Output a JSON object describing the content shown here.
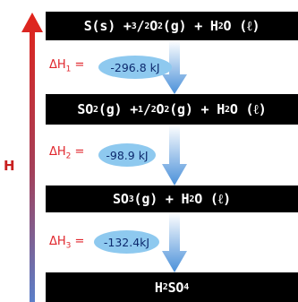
{
  "axis": {
    "label": "H"
  },
  "species": {
    "s": "S(s)",
    "o2": "O",
    "h2o": "H",
    "so2": "SO",
    "so3": "SO",
    "h2so4": "H"
  },
  "reactions": [
    {
      "id": "r1",
      "reactants": "S(s) + 3/2 O2(g) + H2O (ℓ)",
      "delta_h_label": "ΔH1",
      "delta_h_value": "-296.8 kJ"
    },
    {
      "id": "r2",
      "reactants": "SO2(g) + 1/2 O2(g) + H2O (ℓ)",
      "delta_h_label": "ΔH2",
      "delta_h_value": "-98.9 kJ"
    },
    {
      "id": "r3",
      "reactants": "SO3(g) + H2O (ℓ)",
      "delta_h_label": "ΔH3",
      "delta_h_value": "-132.4kJ"
    },
    {
      "id": "r4",
      "reactants": "H2SO4"
    }
  ],
  "text": {
    "box1": {
      "a": "S(s) + ",
      "num": "3",
      "slash": "/",
      "den": "2",
      "b": " O",
      "c": "(g) + H",
      "d": "O (ℓ)"
    },
    "box2": {
      "a": "SO",
      "b": "(g) + ",
      "num": "1",
      "slash": "/",
      "den": "2",
      "c": " O",
      "d": "(g) + H",
      "e": "O (ℓ)"
    },
    "box3": {
      "a": "SO",
      "b": "(g) + H",
      "c": "O (ℓ)"
    },
    "box4": {
      "a": "H",
      "b": "SO"
    },
    "sub2": "2",
    "sub3": "3",
    "sub4": "4",
    "dh": [
      {
        "sym": "ΔH",
        "sub": "1",
        "eq": " ="
      },
      {
        "sym": "ΔH",
        "sub": "2",
        "eq": " ="
      },
      {
        "sym": "ΔH",
        "sub": "3",
        "eq": " ="
      }
    ],
    "values": [
      "-296.8 kJ",
      "-98.9 kJ",
      "-132.4kJ"
    ]
  },
  "colors": {
    "axis_top": "#e2231a",
    "axis_bottom": "#5b7fc9",
    "arrow_top": "#ffffff",
    "arrow_bottom": "#4a90d9",
    "value_bubble": "#8ec9ef",
    "box": "#000000",
    "dh_text": "#e0262c"
  }
}
